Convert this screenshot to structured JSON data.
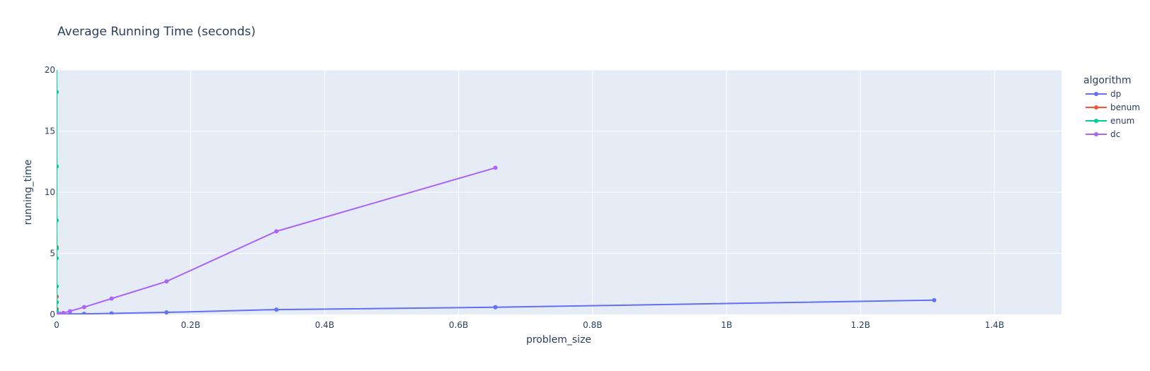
{
  "chart_data": {
    "type": "line",
    "title": "Average Running Time (seconds)",
    "xlabel": "problem_size",
    "ylabel": "running_time",
    "xlim": [
      0,
      1500000000
    ],
    "ylim": [
      0,
      20
    ],
    "x_ticks": [
      {
        "value": 0,
        "label": "0"
      },
      {
        "value": 200000000,
        "label": "0.2B"
      },
      {
        "value": 400000000,
        "label": "0.4B"
      },
      {
        "value": 600000000,
        "label": "0.6B"
      },
      {
        "value": 800000000,
        "label": "0.8B"
      },
      {
        "value": 1000000000,
        "label": "1B"
      },
      {
        "value": 1200000000,
        "label": "1.2B"
      },
      {
        "value": 1400000000,
        "label": "1.4B"
      }
    ],
    "y_ticks": [
      {
        "value": 0,
        "label": "0"
      },
      {
        "value": 5,
        "label": "5"
      },
      {
        "value": 10,
        "label": "10"
      },
      {
        "value": 15,
        "label": "15"
      },
      {
        "value": 20,
        "label": "20"
      }
    ],
    "grid": true,
    "legend": {
      "title": "algorithm",
      "placement": "right"
    },
    "series": [
      {
        "name": "dp",
        "color": "#636efa",
        "x": [
          10000,
          100000,
          1000000,
          5000000,
          10000000,
          20000000,
          41000000,
          82000000,
          164000000,
          328000000,
          655000000,
          1310000000
        ],
        "y": [
          0.0,
          0.0,
          0.0,
          0.01,
          0.02,
          0.04,
          0.05,
          0.09,
          0.17,
          0.4,
          0.59,
          1.17
        ]
      },
      {
        "name": "benum",
        "color": "#ef553b",
        "x": [
          10,
          15,
          20,
          25,
          30
        ],
        "y": [
          0.15,
          0.45,
          1.0,
          1.45,
          5.5
        ]
      },
      {
        "name": "enum",
        "color": "#00cc96",
        "x": [
          10,
          15,
          20,
          25,
          30,
          35,
          40,
          45,
          50
        ],
        "y": [
          0.3,
          1.0,
          2.3,
          4.6,
          5.4,
          7.7,
          12.1,
          18.2,
          22.0
        ]
      },
      {
        "name": "dc",
        "color": "#ab63fa",
        "x": [
          10000,
          100000,
          1000000,
          5000000,
          10000000,
          20000000,
          41000000,
          82000000,
          164000000,
          328000000,
          655000000
        ],
        "y": [
          0.0,
          0.01,
          0.02,
          0.05,
          0.12,
          0.27,
          0.6,
          1.3,
          2.7,
          6.8,
          12.0
        ]
      }
    ]
  }
}
